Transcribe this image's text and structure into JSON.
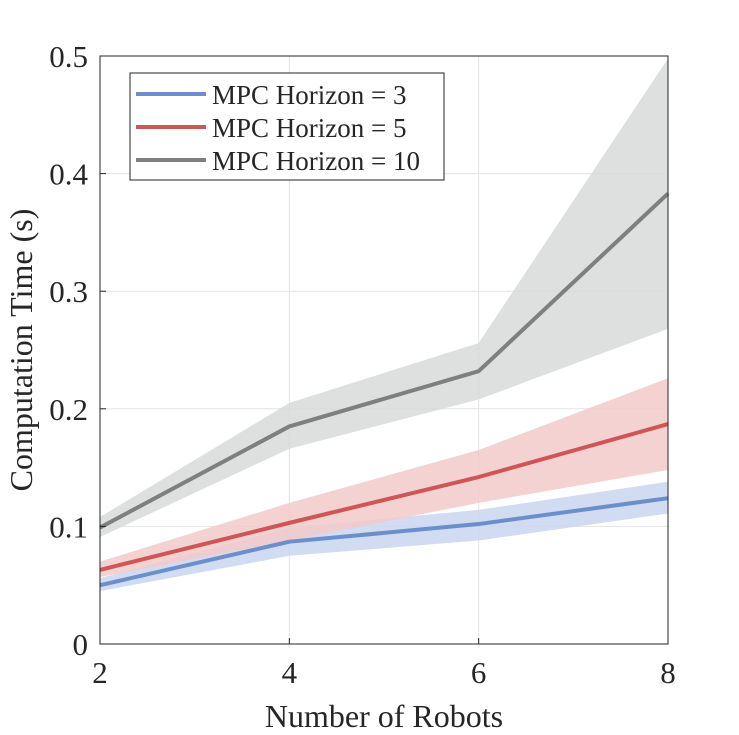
{
  "chart_data": {
    "type": "line",
    "xlabel": "Number of Robots",
    "ylabel": "Computation Time (s)",
    "xlim": [
      2,
      8
    ],
    "ylim": [
      0,
      0.5
    ],
    "xticks": [
      2,
      4,
      6,
      8
    ],
    "yticks": [
      0,
      0.1,
      0.2,
      0.3,
      0.4,
      0.5
    ],
    "xtick_labels": [
      "2",
      "4",
      "6",
      "8"
    ],
    "ytick_labels": [
      "0",
      "0.1",
      "0.2",
      "0.3",
      "0.4",
      "0.5"
    ],
    "grid": true,
    "legend_position": "top-left",
    "x": [
      2,
      4,
      6,
      8
    ],
    "series": [
      {
        "name": "MPC Horizon = 3",
        "color": "#6b8fcb",
        "band_color": "#c9d5ee",
        "values": [
          0.05,
          0.087,
          0.102,
          0.124
        ],
        "lower": [
          0.045,
          0.075,
          0.088,
          0.111
        ],
        "upper": [
          0.056,
          0.099,
          0.114,
          0.138
        ]
      },
      {
        "name": "MPC Horizon = 5",
        "color": "#d05555",
        "band_color": "#f2caca",
        "values": [
          0.063,
          0.103,
          0.142,
          0.187
        ],
        "lower": [
          0.057,
          0.088,
          0.12,
          0.148
        ],
        "upper": [
          0.07,
          0.12,
          0.165,
          0.226
        ]
      },
      {
        "name": "MPC Horizon = 10",
        "color": "#7f7f7f",
        "band_color": "#d8d9d9",
        "values": [
          0.099,
          0.185,
          0.232,
          0.383
        ],
        "lower": [
          0.091,
          0.166,
          0.208,
          0.268
        ],
        "upper": [
          0.108,
          0.205,
          0.256,
          0.498
        ]
      }
    ]
  }
}
